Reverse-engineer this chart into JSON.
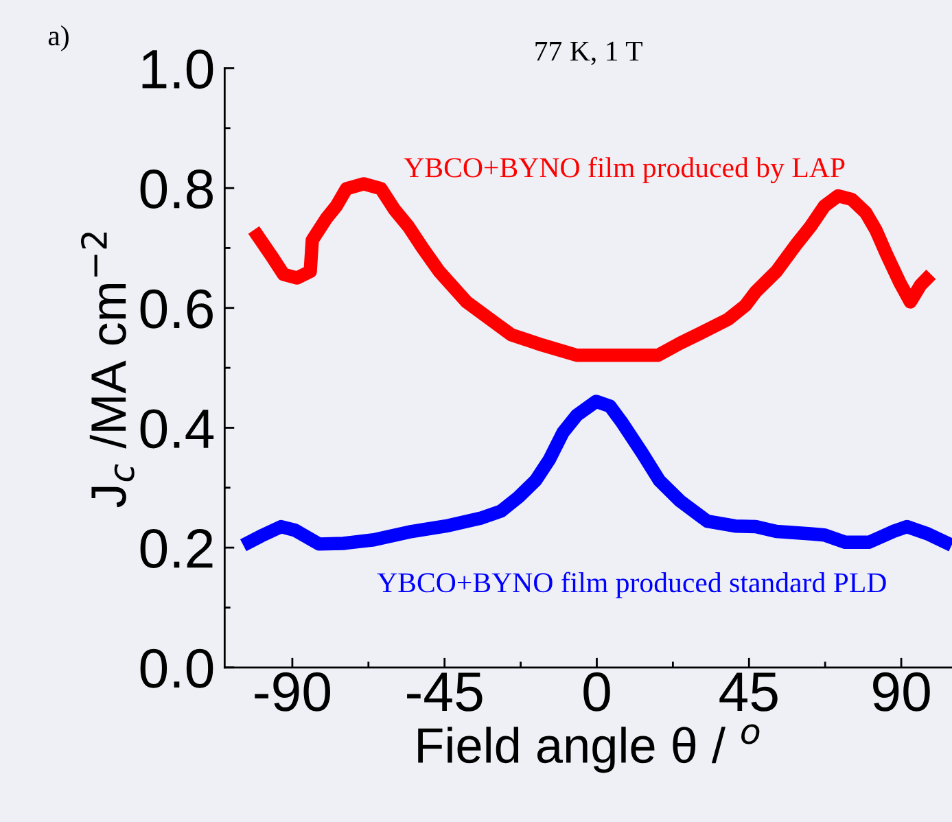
{
  "chart_data": {
    "type": "line",
    "title": "77 K, 1 T",
    "xlabel": "Field angle θ / $^{o}$",
    "ylabel": "J$_{c}$ /MA cm$^{−2}$",
    "annotations": [
      "a)"
    ],
    "xlim": [
      -110,
      105
    ],
    "xticks": [
      -90,
      -45,
      0,
      45,
      90
    ],
    "ylim": [
      0,
      1.0
    ],
    "yticks": [
      {
        "value": 0,
        "label": "0.0"
      },
      0.2,
      0.4,
      0.6,
      0.8,
      {
        "value": 1.0,
        "label": "1.0"
      }
    ],
    "grid": false,
    "legend": false,
    "marker": "none",
    "line_style": "solid",
    "series": [
      {
        "name": "YBCO+BYNO film produced by LAP",
        "color": "#ff0000",
        "x": [
          -101.4,
          -96.3,
          -92.6,
          -88.6,
          -84.7,
          -84.1,
          -80,
          -77,
          -74,
          -68.9,
          -63.8,
          -59.8,
          -55.7,
          -51.6,
          -46.6,
          -38.5,
          -30.3,
          -25.2,
          -16.1,
          -5.9,
          6.3,
          18.1,
          24.6,
          30.7,
          38.8,
          43.9,
          47,
          53.1,
          59.1,
          63.2,
          67.3,
          71.3,
          75.4,
          79.5,
          82.5,
          85.6,
          89.6,
          92.7,
          95.7,
          98.8
        ],
        "values": [
          0.73,
          0.688,
          0.656,
          0.65,
          0.661,
          0.713,
          0.749,
          0.77,
          0.799,
          0.807,
          0.799,
          0.764,
          0.736,
          0.701,
          0.661,
          0.61,
          0.576,
          0.555,
          0.538,
          0.521,
          0.521,
          0.521,
          0.541,
          0.558,
          0.581,
          0.604,
          0.627,
          0.661,
          0.707,
          0.736,
          0.77,
          0.787,
          0.781,
          0.759,
          0.73,
          0.69,
          0.642,
          0.61,
          0.638,
          0.656
        ]
      },
      {
        "name": "YBCO+BYNO film produced standard PLD",
        "color": "#0000ff",
        "x": [
          -104.5,
          -99.4,
          -93.3,
          -89.2,
          -82.1,
          -75,
          -65.9,
          -54.7,
          -44.6,
          -34.4,
          -28.3,
          -23.2,
          -18.1,
          -14,
          -10,
          -5.9,
          -0.2,
          3.9,
          7.3,
          13.4,
          18.5,
          24.6,
          32.7,
          40.9,
          47,
          53.1,
          63.2,
          67.3,
          73.4,
          80.5,
          87.6,
          91.7,
          97.8,
          104.9
        ],
        "values": [
          0.204,
          0.219,
          0.235,
          0.229,
          0.206,
          0.207,
          0.213,
          0.227,
          0.236,
          0.249,
          0.261,
          0.284,
          0.312,
          0.347,
          0.392,
          0.421,
          0.444,
          0.436,
          0.41,
          0.358,
          0.312,
          0.278,
          0.244,
          0.236,
          0.235,
          0.227,
          0.223,
          0.221,
          0.209,
          0.209,
          0.227,
          0.235,
          0.223,
          0.204
        ]
      }
    ]
  }
}
